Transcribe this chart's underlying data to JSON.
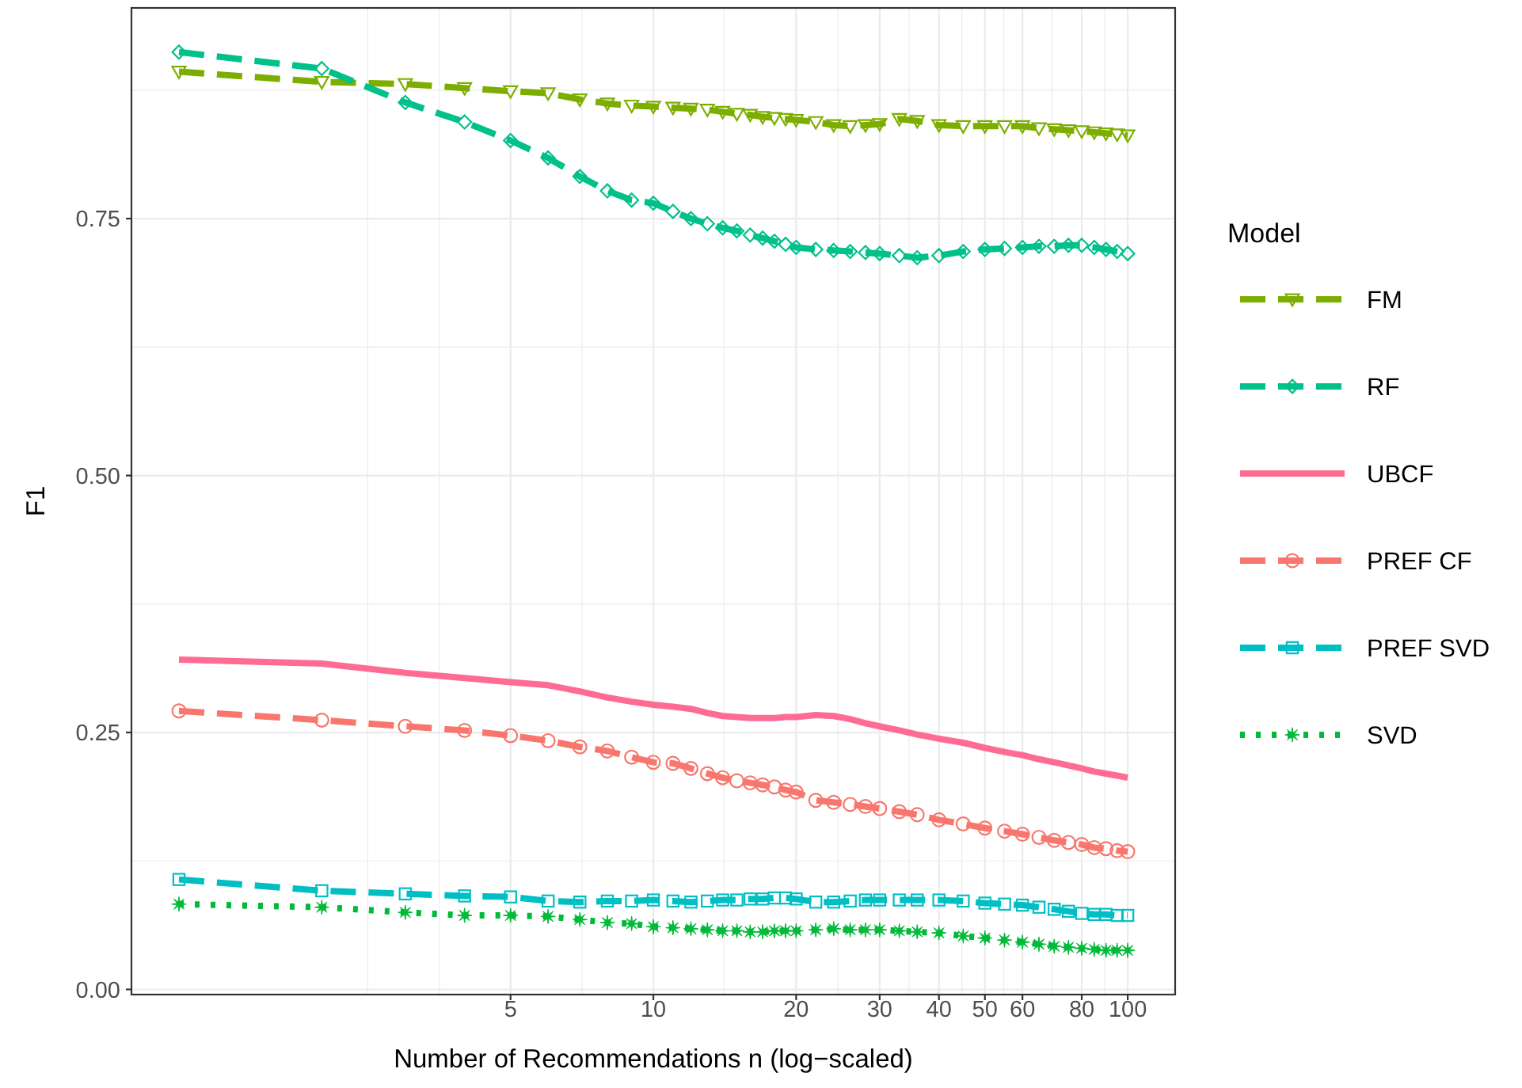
{
  "chart_data": {
    "type": "line",
    "xlabel": "Number of Recommendations n (log−scaled)",
    "ylabel": "F1",
    "legend_title": "Model",
    "x": [
      1,
      2,
      3,
      4,
      5,
      6,
      7,
      8,
      9,
      10,
      11,
      12,
      13,
      14,
      15,
      16,
      17,
      18,
      19,
      20,
      22,
      24,
      26,
      28,
      30,
      33,
      36,
      40,
      45,
      50,
      55,
      60,
      65,
      70,
      75,
      80,
      85,
      90,
      95,
      100
    ],
    "series": [
      {
        "name": "FM",
        "color": "#7cae00",
        "marker": "triangle",
        "line_style": "dashed",
        "values": [
          0.893,
          0.883,
          0.881,
          0.877,
          0.874,
          0.872,
          0.866,
          0.862,
          0.86,
          0.859,
          0.858,
          0.857,
          0.856,
          0.854,
          0.852,
          0.851,
          0.849,
          0.848,
          0.847,
          0.846,
          0.844,
          0.841,
          0.84,
          0.841,
          0.842,
          0.847,
          0.845,
          0.841,
          0.84,
          0.84,
          0.84,
          0.84,
          0.838,
          0.837,
          0.836,
          0.835,
          0.834,
          0.833,
          0.832,
          0.831
        ]
      },
      {
        "name": "RF",
        "color": "#00c08b",
        "marker": "diamond",
        "line_style": "dashed",
        "values": [
          0.912,
          0.896,
          0.863,
          0.844,
          0.826,
          0.809,
          0.791,
          0.777,
          0.768,
          0.765,
          0.757,
          0.75,
          0.745,
          0.741,
          0.738,
          0.734,
          0.731,
          0.728,
          0.725,
          0.722,
          0.72,
          0.719,
          0.718,
          0.717,
          0.716,
          0.714,
          0.712,
          0.714,
          0.718,
          0.72,
          0.721,
          0.722,
          0.723,
          0.723,
          0.724,
          0.724,
          0.722,
          0.72,
          0.718,
          0.716
        ]
      },
      {
        "name": "UBCF",
        "color": "#ff6c91",
        "marker": "none",
        "line_style": "solid",
        "values": [
          0.321,
          0.317,
          0.308,
          0.303,
          0.299,
          0.296,
          0.29,
          0.284,
          0.28,
          0.277,
          0.275,
          0.273,
          0.269,
          0.266,
          0.265,
          0.264,
          0.264,
          0.264,
          0.265,
          0.265,
          0.267,
          0.266,
          0.263,
          0.259,
          0.256,
          0.252,
          0.248,
          0.244,
          0.24,
          0.235,
          0.231,
          0.228,
          0.224,
          0.221,
          0.218,
          0.215,
          0.212,
          0.21,
          0.208,
          0.206
        ]
      },
      {
        "name": "PREF CF",
        "color": "#f8766d",
        "marker": "circle",
        "line_style": "dashed",
        "values": [
          0.271,
          0.262,
          0.256,
          0.252,
          0.247,
          0.242,
          0.236,
          0.232,
          0.226,
          0.221,
          0.22,
          0.215,
          0.21,
          0.206,
          0.203,
          0.201,
          0.199,
          0.197,
          0.194,
          0.192,
          0.184,
          0.182,
          0.18,
          0.178,
          0.176,
          0.173,
          0.17,
          0.165,
          0.161,
          0.157,
          0.154,
          0.151,
          0.148,
          0.145,
          0.143,
          0.141,
          0.138,
          0.137,
          0.135,
          0.134
        ]
      },
      {
        "name": "PREF SVD",
        "color": "#00bfc4",
        "marker": "square",
        "line_style": "dashed",
        "values": [
          0.107,
          0.096,
          0.093,
          0.091,
          0.09,
          0.086,
          0.085,
          0.086,
          0.086,
          0.087,
          0.086,
          0.085,
          0.086,
          0.087,
          0.087,
          0.088,
          0.088,
          0.089,
          0.089,
          0.088,
          0.085,
          0.085,
          0.086,
          0.087,
          0.087,
          0.087,
          0.087,
          0.087,
          0.086,
          0.084,
          0.083,
          0.082,
          0.08,
          0.078,
          0.076,
          0.074,
          0.073,
          0.073,
          0.072,
          0.072
        ]
      },
      {
        "name": "SVD",
        "color": "#00ba38",
        "marker": "star",
        "line_style": "dotted",
        "values": [
          0.083,
          0.08,
          0.075,
          0.072,
          0.072,
          0.071,
          0.068,
          0.065,
          0.064,
          0.061,
          0.06,
          0.059,
          0.058,
          0.057,
          0.057,
          0.056,
          0.056,
          0.057,
          0.057,
          0.057,
          0.058,
          0.059,
          0.058,
          0.058,
          0.058,
          0.057,
          0.056,
          0.055,
          0.052,
          0.05,
          0.048,
          0.046,
          0.044,
          0.042,
          0.041,
          0.04,
          0.039,
          0.038,
          0.038,
          0.038
        ]
      }
    ],
    "log": "x",
    "xlim": [
      0.794,
      125.9
    ],
    "xticks": [
      {
        "value": 2.5,
        "label": null
      },
      {
        "value": 3.54,
        "label": null
      },
      5,
      {
        "value": 7.07,
        "label": null
      },
      10,
      {
        "value": 14.1,
        "label": null
      },
      20,
      {
        "value": 24.5,
        "label": null
      },
      30,
      {
        "value": 34.6,
        "label": null
      },
      40,
      {
        "value": 44.7,
        "label": null
      },
      50,
      {
        "value": 54.8,
        "label": null
      },
      60,
      {
        "value": 69.3,
        "label": null
      },
      80,
      {
        "value": 89.4,
        "label": null
      },
      100
    ],
    "ylim": [
      -0.005,
      0.955
    ],
    "yticks": [
      {
        "value": 0,
        "label": "0.00"
      },
      {
        "value": 0.125,
        "label": null
      },
      {
        "value": 0.25,
        "label": "0.25"
      },
      {
        "value": 0.375,
        "label": null
      },
      {
        "value": 0.5,
        "label": "0.50"
      },
      {
        "value": 0.625,
        "label": null
      },
      {
        "value": 0.75,
        "label": "0.75"
      },
      {
        "value": 0.875,
        "label": null
      }
    ],
    "grid": true,
    "legend": "right"
  }
}
